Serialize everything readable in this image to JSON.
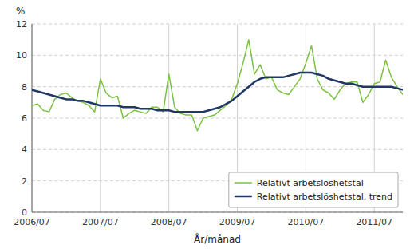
{
  "chart_data": {
    "type": "line",
    "xlabel": "År/månad",
    "ylabel": "%",
    "categories": [
      "2006/07",
      null,
      null,
      null,
      null,
      null,
      null,
      null,
      null,
      null,
      null,
      null,
      "2007/07",
      null,
      null,
      null,
      null,
      null,
      null,
      null,
      null,
      null,
      null,
      null,
      "2008/07",
      null,
      null,
      null,
      null,
      null,
      null,
      null,
      null,
      null,
      null,
      null,
      "2009/07",
      null,
      null,
      null,
      null,
      null,
      null,
      null,
      null,
      null,
      null,
      null,
      "2010/07",
      null,
      null,
      null,
      null,
      null,
      null,
      null,
      null,
      null,
      null,
      null,
      "2011/07",
      null,
      null,
      null,
      null,
      null
    ],
    "series": [
      {
        "name": "Relativt arbetslöshetstal",
        "color": "#7bc143",
        "values": [
          6.8,
          6.9,
          6.5,
          6.4,
          7.2,
          7.5,
          7.6,
          7.3,
          7.1,
          7.0,
          6.8,
          6.4,
          8.5,
          7.6,
          7.3,
          7.4,
          6.0,
          6.3,
          6.5,
          6.4,
          6.3,
          6.7,
          6.7,
          6.4,
          8.8,
          6.7,
          6.3,
          6.2,
          6.2,
          5.2,
          6.0,
          6.1,
          6.2,
          6.5,
          6.8,
          7.2,
          8.2,
          9.5,
          11.0,
          8.8,
          9.4,
          8.5,
          8.6,
          7.8,
          7.6,
          7.5,
          8.0,
          8.5,
          9.5,
          10.6,
          8.5,
          7.8,
          7.6,
          7.2,
          7.8,
          8.2,
          8.3,
          8.3,
          7.0,
          7.5,
          8.2,
          8.3,
          9.7,
          8.6,
          8.0,
          7.5
        ]
      },
      {
        "name": "Relativt arbetslöshetstal, trend",
        "color": "#1f3864",
        "values": [
          7.8,
          7.7,
          7.6,
          7.5,
          7.4,
          7.3,
          7.2,
          7.2,
          7.1,
          7.1,
          7.0,
          6.9,
          6.8,
          6.8,
          6.8,
          6.8,
          6.7,
          6.7,
          6.7,
          6.6,
          6.6,
          6.6,
          6.5,
          6.5,
          6.5,
          6.4,
          6.4,
          6.4,
          6.4,
          6.4,
          6.4,
          6.5,
          6.6,
          6.7,
          6.9,
          7.1,
          7.4,
          7.7,
          8.0,
          8.3,
          8.5,
          8.6,
          8.6,
          8.6,
          8.6,
          8.7,
          8.8,
          8.9,
          8.9,
          8.9,
          8.8,
          8.7,
          8.5,
          8.4,
          8.3,
          8.2,
          8.2,
          8.1,
          8.0,
          8.0,
          8.0,
          8.0,
          8.0,
          8.0,
          7.9,
          7.8
        ]
      }
    ],
    "ylim": [
      0,
      12
    ],
    "yticks": [
      0,
      2,
      4,
      6,
      8,
      10,
      12
    ],
    "grid": true,
    "legend": "lower right"
  }
}
